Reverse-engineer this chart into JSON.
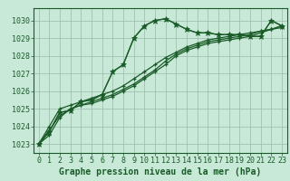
{
  "title": "Graphe pression niveau de la mer (hPa)",
  "background_color": "#c8e8d8",
  "plot_bg_color": "#c8e8d8",
  "grid_color": "#99bbaa",
  "line_color": "#1a5c28",
  "spine_color": "#1a5c28",
  "xlim": [
    -0.5,
    23.5
  ],
  "ylim": [
    1022.5,
    1030.7
  ],
  "yticks": [
    1023,
    1024,
    1025,
    1026,
    1027,
    1028,
    1029,
    1030
  ],
  "xticks": [
    0,
    1,
    2,
    3,
    4,
    5,
    6,
    7,
    8,
    9,
    10,
    11,
    12,
    13,
    14,
    15,
    16,
    17,
    18,
    19,
    20,
    21,
    22,
    23
  ],
  "tick_fontsize": 6,
  "label_fontsize": 7,
  "series": [
    [
      1023.0,
      1023.7,
      1024.8,
      1024.9,
      1025.4,
      1025.5,
      1025.8,
      1027.1,
      1027.5,
      1029.0,
      1029.7,
      1030.0,
      1030.1,
      1029.8,
      1029.5,
      1029.3,
      1029.3,
      1029.2,
      1029.2,
      1029.2,
      1029.1,
      1029.1,
      1030.0,
      1029.7
    ],
    [
      1023.0,
      1024.0,
      1025.0,
      1025.2,
      1025.4,
      1025.6,
      1025.8,
      1026.0,
      1026.3,
      1026.7,
      1027.1,
      1027.5,
      1027.9,
      1028.2,
      1028.5,
      1028.7,
      1028.9,
      1029.0,
      1029.1,
      1029.2,
      1029.3,
      1029.4,
      1029.5,
      1029.6
    ],
    [
      1023.0,
      1023.8,
      1024.6,
      1025.0,
      1025.2,
      1025.4,
      1025.6,
      1025.8,
      1026.1,
      1026.4,
      1026.8,
      1027.2,
      1027.7,
      1028.1,
      1028.4,
      1028.6,
      1028.8,
      1028.9,
      1029.0,
      1029.1,
      1029.2,
      1029.4,
      1029.5,
      1029.7
    ],
    [
      1023.0,
      1023.5,
      1024.5,
      1025.0,
      1025.2,
      1025.3,
      1025.5,
      1025.7,
      1026.0,
      1026.3,
      1026.7,
      1027.1,
      1027.5,
      1028.0,
      1028.3,
      1028.5,
      1028.7,
      1028.8,
      1028.9,
      1029.0,
      1029.1,
      1029.3,
      1029.5,
      1029.7
    ]
  ]
}
